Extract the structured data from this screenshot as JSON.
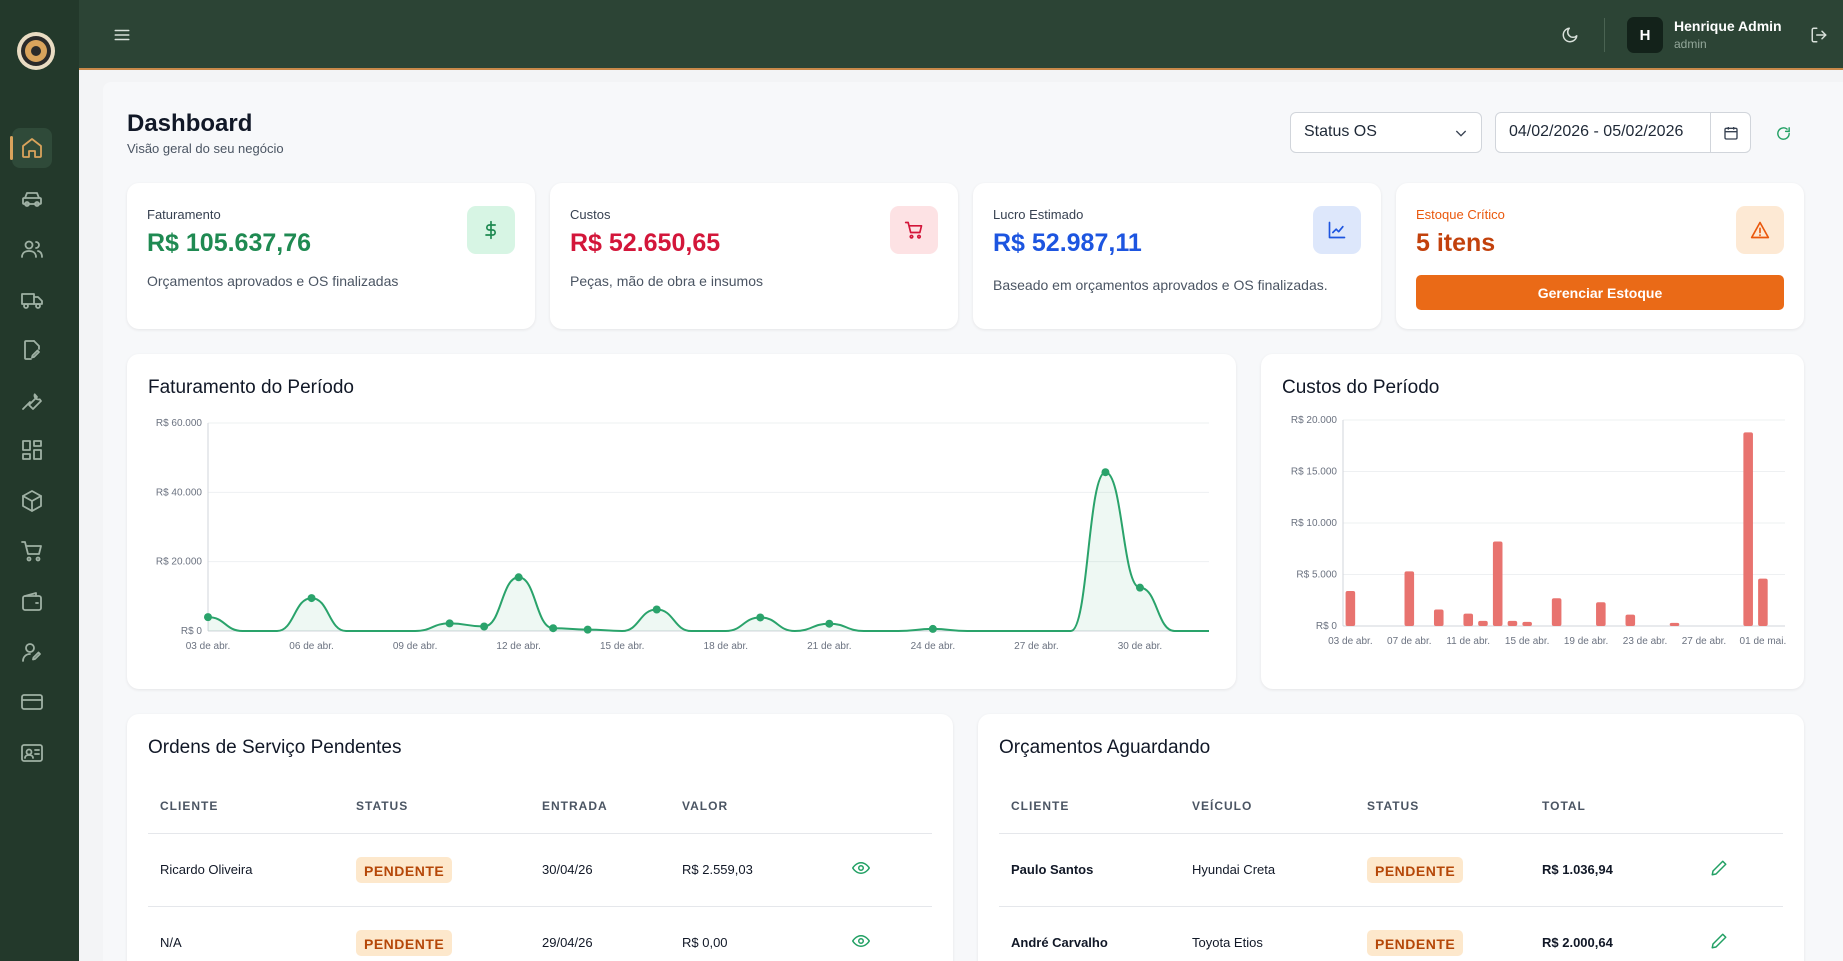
{
  "header": {
    "user_initial": "H",
    "user_name": "Henrique Admin",
    "user_role": "admin"
  },
  "sidebar": {
    "items": [
      {
        "name": "home",
        "icon": "home-icon",
        "active": true
      },
      {
        "name": "vehicles",
        "icon": "car-icon"
      },
      {
        "name": "clients",
        "icon": "users-icon"
      },
      {
        "name": "transport",
        "icon": "truck-icon"
      },
      {
        "name": "orders",
        "icon": "edit-document-icon"
      },
      {
        "name": "services",
        "icon": "wrench-icon"
      },
      {
        "name": "modules",
        "icon": "grid-icon"
      },
      {
        "name": "inventory",
        "icon": "box-icon"
      },
      {
        "name": "purchases",
        "icon": "cart-icon"
      },
      {
        "name": "finance",
        "icon": "wallet-icon"
      },
      {
        "name": "staff",
        "icon": "user-edit-icon"
      },
      {
        "name": "payments",
        "icon": "credit-card-icon"
      },
      {
        "name": "contacts",
        "icon": "id-card-icon"
      }
    ]
  },
  "page": {
    "title": "Dashboard",
    "subtitle": "Visão geral do seu negócio"
  },
  "filters": {
    "status_select": "Status OS",
    "date_range": "04/02/2026 - 05/02/2026"
  },
  "stats": {
    "revenue": {
      "label": "Faturamento",
      "value": "R$ 105.637,76",
      "desc": "Orçamentos aprovados e OS finalizadas",
      "color": "#1f8a52"
    },
    "costs": {
      "label": "Custos",
      "value": "R$ 52.650,65",
      "desc": "Peças, mão de obra e insumos",
      "color": "#d3163a"
    },
    "profit": {
      "label": "Lucro Estimado",
      "value": "R$ 52.987,11",
      "desc": "Baseado em orçamentos aprovados e OS finalizadas.",
      "color": "#1d55e0"
    },
    "stock": {
      "label": "Estoque Crítico",
      "value": "5 itens",
      "button": "Gerenciar Estoque",
      "color": "#c2410c"
    }
  },
  "revenue_chart": {
    "title": "Faturamento do Período",
    "chart_data": {
      "type": "area",
      "y_ticks": [
        "R$ 60.000",
        "R$ 40.000",
        "R$ 20.000",
        "R$ 0"
      ],
      "ylim": [
        0,
        60000
      ],
      "x_ticks": [
        "03 de abr.",
        "06 de abr.",
        "09 de abr.",
        "12 de abr.",
        "15 de abr.",
        "18 de abr.",
        "21 de abr.",
        "24 de abr.",
        "27 de abr.",
        "30 de abr."
      ],
      "x": [
        "03 de abr.",
        "04 de abr.",
        "05 de abr.",
        "06 de abr.",
        "07 de abr.",
        "08 de abr.",
        "09 de abr.",
        "10 de abr.",
        "11 de abr.",
        "12 de abr.",
        "13 de abr.",
        "14 de abr.",
        "15 de abr.",
        "16 de abr.",
        "17 de abr.",
        "18 de abr.",
        "19 de abr.",
        "20 de abr.",
        "21 de abr.",
        "22 de abr.",
        "23 de abr.",
        "24 de abr.",
        "25 de abr.",
        "26 de abr.",
        "27 de abr.",
        "28 de abr.",
        "29 de abr.",
        "30 de abr.",
        "01 de mai.",
        "02 de mai."
      ],
      "values": [
        4000,
        0,
        0,
        9500,
        0,
        0,
        0,
        2200,
        1300,
        15500,
        800,
        400,
        0,
        6200,
        0,
        0,
        3900,
        0,
        2100,
        0,
        0,
        600,
        0,
        0,
        0,
        0,
        45800,
        12500,
        0,
        0
      ],
      "markers": [
        true,
        false,
        false,
        true,
        false,
        false,
        false,
        true,
        true,
        true,
        true,
        true,
        false,
        true,
        false,
        false,
        true,
        false,
        true,
        false,
        false,
        true,
        false,
        false,
        false,
        false,
        true,
        true,
        false,
        false
      ],
      "color": "#2aa36b"
    }
  },
  "cost_chart": {
    "title": "Custos do Período",
    "chart_data": {
      "type": "bar",
      "y_ticks": [
        "R$ 20.000",
        "R$ 15.000",
        "R$ 10.000",
        "R$ 5.000",
        "R$ 0"
      ],
      "ylim": [
        0,
        20000
      ],
      "x_ticks": [
        "03 de abr.",
        "07 de abr.",
        "11 de abr.",
        "15 de abr.",
        "19 de abr.",
        "23 de abr.",
        "27 de abr.",
        "01 de mai."
      ],
      "x": [
        "03 de abr.",
        "04 de abr.",
        "05 de abr.",
        "06 de abr.",
        "07 de abr.",
        "08 de abr.",
        "09 de abr.",
        "10 de abr.",
        "11 de abr.",
        "12 de abr.",
        "13 de abr.",
        "14 de abr.",
        "15 de abr.",
        "16 de abr.",
        "17 de abr.",
        "18 de abr.",
        "19 de abr.",
        "20 de abr.",
        "21 de abr.",
        "22 de abr.",
        "23 de abr.",
        "24 de abr.",
        "25 de abr.",
        "26 de abr.",
        "27 de abr.",
        "28 de abr.",
        "29 de abr.",
        "30 de abr.",
        "01 de mai.",
        "02 de mai."
      ],
      "values": [
        3400,
        0,
        0,
        0,
        5300,
        0,
        1600,
        0,
        1200,
        500,
        8200,
        500,
        400,
        0,
        2700,
        0,
        0,
        2300,
        0,
        1100,
        0,
        0,
        300,
        0,
        0,
        0,
        0,
        18800,
        4600,
        0
      ],
      "color": "#e8736f"
    }
  },
  "orders": {
    "title": "Ordens de Serviço Pendentes",
    "columns": [
      "CLIENTE",
      "STATUS",
      "ENTRADA",
      "VALOR"
    ],
    "rows": [
      {
        "client": "Ricardo Oliveira",
        "status": "PENDENTE",
        "date": "30/04/26",
        "value": "R$ 2.559,03"
      },
      {
        "client": "N/A",
        "status": "PENDENTE",
        "date": "29/04/26",
        "value": "R$ 0,00"
      }
    ]
  },
  "quotes": {
    "title": "Orçamentos Aguardando",
    "columns": [
      "CLIENTE",
      "VEÍCULO",
      "STATUS",
      "TOTAL"
    ],
    "rows": [
      {
        "client": "Paulo Santos",
        "vehicle": "Hyundai Creta",
        "status": "PENDENTE",
        "total": "R$ 1.036,94"
      },
      {
        "client": "André Carvalho",
        "vehicle": "Toyota Etios",
        "status": "PENDENTE",
        "total": "R$ 2.000,64"
      }
    ]
  }
}
